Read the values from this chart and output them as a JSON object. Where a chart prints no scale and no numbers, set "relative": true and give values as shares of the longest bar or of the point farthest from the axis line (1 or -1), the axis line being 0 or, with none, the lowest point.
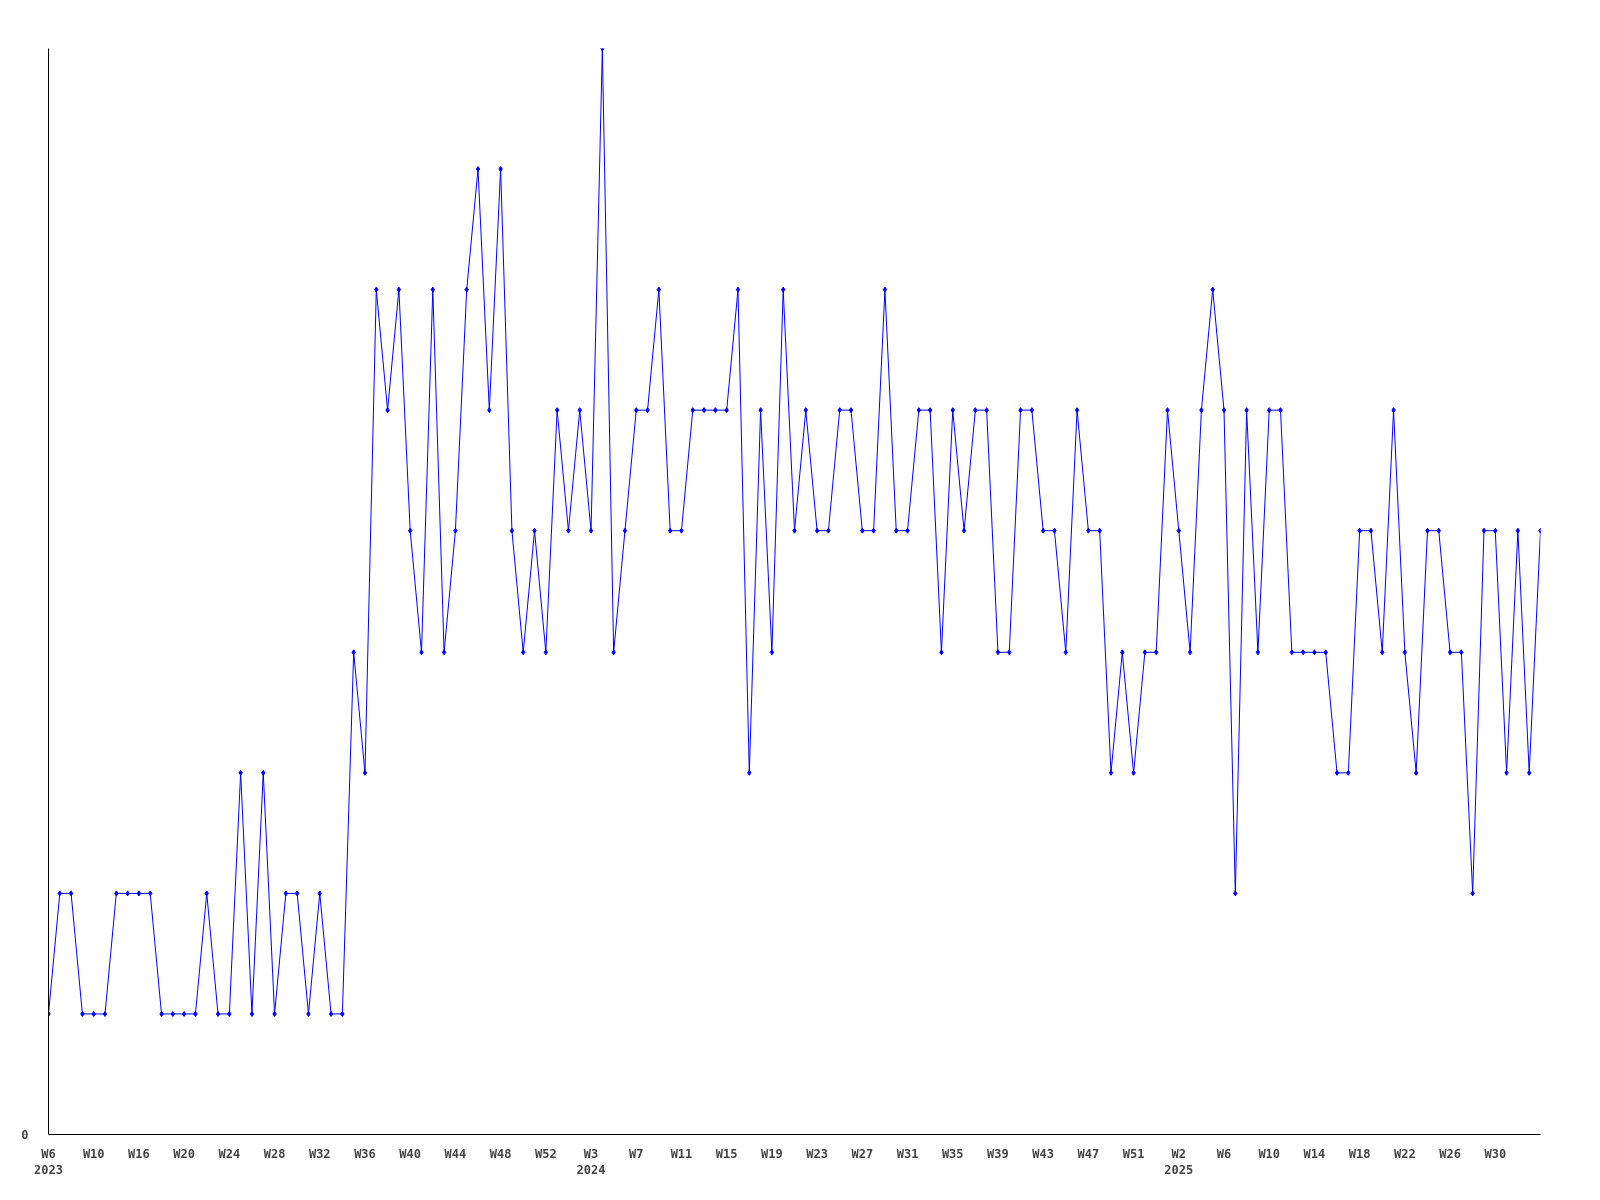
{
  "chart_data": {
    "type": "line",
    "relative": true,
    "marker": "diamond",
    "line_style": "solid",
    "grid": false,
    "annotations": [
      "0"
    ],
    "categories": [
      "W6\n2023",
      null,
      null,
      null,
      "W10",
      null,
      null,
      null,
      "W16",
      null,
      null,
      null,
      "W20",
      null,
      null,
      null,
      "W24",
      null,
      null,
      null,
      "W28",
      null,
      null,
      null,
      "W32",
      null,
      null,
      null,
      "W36",
      null,
      null,
      null,
      "W40",
      null,
      null,
      null,
      "W44",
      null,
      null,
      null,
      "W48",
      null,
      null,
      null,
      "W52",
      null,
      null,
      null,
      "W3\n2024",
      null,
      null,
      null,
      "W7",
      null,
      null,
      null,
      "W11",
      null,
      null,
      null,
      "W15",
      null,
      null,
      null,
      "W19",
      null,
      null,
      null,
      "W23",
      null,
      null,
      null,
      "W27",
      null,
      null,
      null,
      "W31",
      null,
      null,
      null,
      "W35",
      null,
      null,
      null,
      "W39",
      null,
      null,
      null,
      "W43",
      null,
      null,
      null,
      "W47",
      null,
      null,
      null,
      "W51",
      null,
      null,
      null,
      "W2\n2025",
      null,
      null,
      null,
      "W6",
      null,
      null,
      null,
      "W10",
      null,
      null,
      null,
      "W14",
      null,
      null,
      null,
      "W18",
      null,
      null,
      null,
      "W22",
      null,
      null,
      null,
      "W26",
      null,
      null,
      null,
      "W30",
      null,
      null,
      null,
      null
    ],
    "series": [
      {
        "color": "#0000ff",
        "values": [
          0.111,
          0.222,
          0.222,
          0.111,
          0.111,
          0.111,
          0.222,
          0.222,
          0.222,
          0.222,
          0.111,
          0.111,
          0.111,
          0.111,
          0.222,
          0.111,
          0.111,
          0.333,
          0.111,
          0.333,
          0.111,
          0.222,
          0.222,
          0.111,
          0.222,
          0.111,
          0.111,
          0.444,
          0.333,
          0.778,
          0.667,
          0.778,
          0.556,
          0.444,
          0.778,
          0.444,
          0.556,
          0.778,
          0.889,
          0.667,
          0.889,
          0.556,
          0.444,
          0.556,
          0.444,
          0.667,
          0.556,
          0.667,
          0.556,
          1,
          0.444,
          0.556,
          0.667,
          0.667,
          0.778,
          0.556,
          0.556,
          0.667,
          0.667,
          0.667,
          0.667,
          0.778,
          0.333,
          0.667,
          0.444,
          0.778,
          0.556,
          0.667,
          0.556,
          0.556,
          0.667,
          0.667,
          0.556,
          0.556,
          0.778,
          0.556,
          0.556,
          0.667,
          0.667,
          0.444,
          0.667,
          0.556,
          0.667,
          0.667,
          0.444,
          0.444,
          0.667,
          0.667,
          0.556,
          0.556,
          0.444,
          0.667,
          0.556,
          0.556,
          0.333,
          0.444,
          0.333,
          0.444,
          0.444,
          0.667,
          0.556,
          0.444,
          0.667,
          0.778,
          0.667,
          0.222,
          0.667,
          0.444,
          0.667,
          0.667,
          0.444,
          0.444,
          0.444,
          0.444,
          0.333,
          0.333,
          0.556,
          0.556,
          0.444,
          0.667,
          0.444,
          0.333,
          0.556,
          0.556,
          0.444,
          0.444,
          0.222,
          0.556,
          0.556,
          0.333,
          0.556,
          0.333,
          0.556
        ]
      }
    ]
  }
}
